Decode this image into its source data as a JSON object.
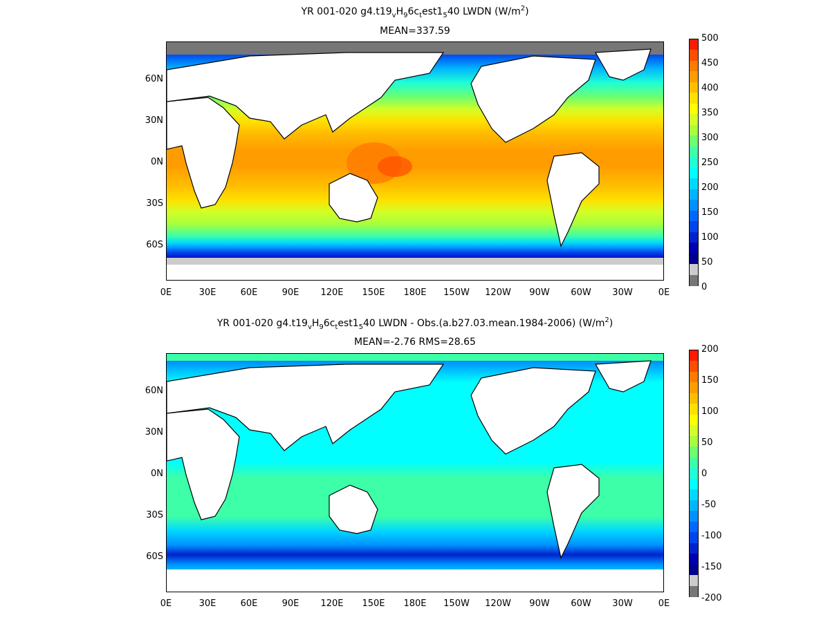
{
  "panels": [
    {
      "title": {
        "prefix": "YR 001-020 g4.t19",
        "s1": "v",
        "m1": "H",
        "s2": "9",
        "m2": "6c",
        "s3": "t",
        "m3": "est1",
        "s4": "5",
        "after": "40 LWDN (W/m",
        "sup": "2",
        "close": ")"
      },
      "subtitle": "MEAN=337.59",
      "y_ticks": [
        "60N",
        "30N",
        "0N",
        "30S",
        "60S"
      ],
      "x_ticks": [
        "0E",
        "30E",
        "60E",
        "90E",
        "120E",
        "150E",
        "180E",
        "150W",
        "120W",
        "90W",
        "60W",
        "30W",
        "0E"
      ],
      "colorbar": {
        "labels": [
          "500",
          "450",
          "400",
          "350",
          "300",
          "250",
          "200",
          "150",
          "100",
          "50",
          "0"
        ],
        "colors": [
          "#ff1a00",
          "#ff4d00",
          "#ff7a00",
          "#ff9d00",
          "#ffbd00",
          "#ffe000",
          "#ffff00",
          "#d2ff27",
          "#a8ff3c",
          "#6eff6e",
          "#3dffa8",
          "#1effd6",
          "#00ffff",
          "#00d8ff",
          "#00b4ff",
          "#0090ff",
          "#0066ff",
          "#0044ee",
          "#0022cc",
          "#0000b0",
          "#00008c",
          "#cccccc",
          "#777777"
        ]
      }
    },
    {
      "title": {
        "prefix": "YR 001-020 g4.t19",
        "s1": "v",
        "m1": "H",
        "s2": "9",
        "m2": "6c",
        "s3": "t",
        "m3": "est1",
        "s4": "5",
        "after": "40 LWDN - Obs.(a.b27.03.mean.1984-2006) (W/m",
        "sup": "2",
        "close": ")"
      },
      "subtitle": "MEAN=-2.76 RMS=28.65",
      "y_ticks": [
        "60N",
        "30N",
        "0N",
        "30S",
        "60S"
      ],
      "x_ticks": [
        "0E",
        "30E",
        "60E",
        "90E",
        "120E",
        "150E",
        "180E",
        "150W",
        "120W",
        "90W",
        "60W",
        "30W",
        "0E"
      ],
      "colorbar": {
        "labels": [
          "200",
          "150",
          "100",
          "50",
          "0",
          "-50",
          "-100",
          "-150",
          "-200"
        ],
        "colors": [
          "#ff1a00",
          "#ff4d00",
          "#ff7a00",
          "#ff9d00",
          "#ffbd00",
          "#ffe000",
          "#ffff00",
          "#d2ff27",
          "#a8ff3c",
          "#6eff6e",
          "#3dffa8",
          "#1effd6",
          "#00ffff",
          "#00d8ff",
          "#00b4ff",
          "#0090ff",
          "#0066ff",
          "#0044ee",
          "#0022cc",
          "#0000b0",
          "#00008c",
          "#cccccc",
          "#777777"
        ]
      }
    }
  ]
}
